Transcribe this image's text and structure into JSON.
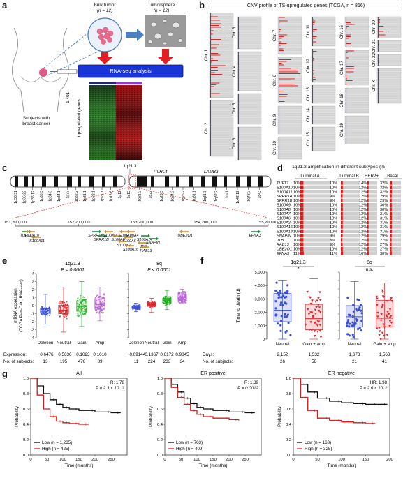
{
  "panel_labels": {
    "a": "a",
    "b": "b",
    "c": "c",
    "d": "d",
    "e": "e",
    "f": "f",
    "g": "g"
  },
  "panel_a": {
    "bulk_title": "Bulk tumor",
    "bulk_n": "(n = 12)",
    "sphere_title": "Tumorsphere",
    "sphere_n": "(n = 12)",
    "rnaseq": "RNA-seq analysis",
    "heat_l1": "1,401",
    "heat_l2": "upregulated genes",
    "subjects_l1": "Subjects with",
    "subjects_l2": "breast cancer"
  },
  "panel_b": {
    "title": "CNV profile of TS-upregulated genes (TCGA, n = 816)",
    "chromosomes": [
      "Chr. 1",
      "Chr. 2",
      "Chr. 3",
      "Chr. 4",
      "Chr. 5",
      "Chr. 6",
      "Chr. 7",
      "Chr. 8",
      "Chr. 9",
      "Chr. 10",
      "Chr. 11",
      "Chr. 12",
      "Chr. 13",
      "Chr. 14",
      "Chr. 15",
      "Chr. 16",
      "Chr. 17",
      "Chr. 18",
      "Chr. 19",
      "Chr. 20",
      "Chr. 21",
      "Chr. 22",
      "Chr. X"
    ]
  },
  "panel_c": {
    "band_top": "1q21.3",
    "gene_top1": "PVRL4",
    "gene_top2": "LAMB3",
    "bands_p": [
      "1p36.31",
      "1p36.22",
      "1p36.12",
      "1p35.3",
      "1p34.3",
      "1p34.1",
      "1p33",
      "1p32.2",
      "1p31.1",
      "1p22.1",
      "1p21.1",
      "1p13.3",
      "1p12"
    ],
    "bands_q": [
      "1q12",
      "1q21.2",
      "1q22",
      "1q23.3",
      "1q24.2",
      "1q25.2",
      "1q31.1",
      "1q31.3",
      "1q32.2",
      "1q41",
      "1q42.12",
      "1q42.2",
      "1q43"
    ],
    "positions": [
      "151,200,000",
      "152,200,000",
      "153,200,000",
      "154,200,000",
      "155,200,000"
    ],
    "genes": [
      "TUFT1",
      "S100A10",
      "S100A11",
      "SPRR1A",
      "SPRR1B",
      "S100A9",
      "S100A8",
      "S100A7",
      "S100A4",
      "S100A6",
      "S100A14",
      "S100A2",
      "S100A16",
      "JTB",
      "RAB13",
      "SNAPIN",
      "UBE2Q1",
      "EFNA3"
    ]
  },
  "panel_d": {
    "title": "1q21.3 amplification in different subtypes (%)",
    "headers": [
      "Luminal A",
      "Luminal B",
      "HER2+",
      "Basal"
    ],
    "rows": [
      {
        "gene": "TUFT1",
        "la": "10%",
        "lb": "10%",
        "her2": "14%",
        "basal": "32%"
      },
      {
        "gene": "S100A10",
        "la": "10%",
        "lb": "10%",
        "her2": "12%",
        "basal": "32%"
      },
      {
        "gene": "S100A11",
        "la": "10%",
        "lb": "10%",
        "her2": "12%",
        "basal": "32%"
      },
      {
        "gene": "SPRR1A",
        "la": "10%",
        "lb": "9%",
        "her2": "12%",
        "basal": "29%"
      },
      {
        "gene": "SPRR1B",
        "la": "10%",
        "lb": "9%",
        "her2": "12%",
        "basal": "29%"
      },
      {
        "gene": "S100A9",
        "la": "10%",
        "lb": "10%",
        "her2": "12%",
        "basal": "30%"
      },
      {
        "gene": "S100A8",
        "la": "10%",
        "lb": "10%",
        "her2": "12%",
        "basal": "30%"
      },
      {
        "gene": "S100A7",
        "la": "10%",
        "lb": "10%",
        "her2": "12%",
        "basal": "31%"
      },
      {
        "gene": "S100A6",
        "la": "10%",
        "lb": "10%",
        "her2": "12%",
        "basal": "31%"
      },
      {
        "gene": "S100A2",
        "la": "10%",
        "lb": "10%",
        "her2": "12%",
        "basal": "31%"
      },
      {
        "gene": "S100A16",
        "la": "10%",
        "lb": "10%",
        "her2": "12%",
        "basal": "31%"
      },
      {
        "gene": "S100A14",
        "la": "10%",
        "lb": "10%",
        "her2": "12%",
        "basal": "31%"
      },
      {
        "gene": "SNAPIN",
        "la": "10%",
        "lb": "9%",
        "her2": "12%",
        "basal": "29%"
      },
      {
        "gene": "JTB",
        "la": "10%",
        "lb": "8%",
        "her2": "12%",
        "basal": "27%"
      },
      {
        "gene": "RAB13",
        "la": "10%",
        "lb": "9%",
        "her2": "12%",
        "basal": "27%"
      },
      {
        "gene": "UBE2Q1",
        "la": "10%",
        "lb": "10%",
        "her2": "12%",
        "basal": "27%"
      },
      {
        "gene": "EFNA3",
        "la": "11%",
        "lb": "11%",
        "her2": "16%",
        "basal": "30%"
      }
    ]
  },
  "chart_data": [
    {
      "type": "box",
      "panel": "e-left",
      "title": "1q21.3",
      "pvalue": "P < 0.0001",
      "ylabel": "mRNA expression (TCGA Pan-Can, RNA-seq)",
      "ylim": [
        -4,
        4
      ],
      "yticks": [
        "-4",
        "-3",
        "-2",
        "-1",
        "0",
        "1",
        "2",
        "3",
        "4"
      ],
      "categories": [
        "Deletion",
        "Neutral",
        "Gain",
        "Amp"
      ],
      "colors": [
        "#3b4fd6",
        "#e0262a",
        "#1aad1a",
        "#b45cd6"
      ],
      "box": [
        {
          "q1": -0.95,
          "median": -0.6476,
          "q3": -0.4,
          "min": -2.3,
          "max": 1.4
        },
        {
          "q1": -1.0,
          "median": -0.5636,
          "q3": 0.05,
          "min": -3.3,
          "max": 2.3
        },
        {
          "q1": -0.7,
          "median": -0.1023,
          "q3": 0.6,
          "min": -2.6,
          "max": 3.0
        },
        {
          "q1": -0.45,
          "median": 0.101,
          "q3": 0.85,
          "min": -1.9,
          "max": 2.3
        }
      ],
      "footer_label_expression": "Expression:",
      "footer_label_subjects": "No. of subjects:",
      "expression": [
        "−0.6476",
        "−0.5636",
        "−0.1023",
        "0.1010"
      ],
      "subjects": [
        "13",
        "195",
        "476",
        "89"
      ]
    },
    {
      "type": "box",
      "panel": "e-right",
      "title": "8q",
      "pvalue": "P < 0.0001",
      "ylim": [
        -4,
        4
      ],
      "yticks": [
        "-4",
        "-3",
        "-2",
        "-1",
        "0",
        "1",
        "2",
        "3",
        "4"
      ],
      "categories": [
        "Deletion",
        "Neutral",
        "Gain",
        "Amp"
      ],
      "colors": [
        "#3b4fd6",
        "#e0262a",
        "#1aad1a",
        "#b45cd6"
      ],
      "box": [
        {
          "q1": -0.35,
          "median": -0.09144,
          "q3": -0.05,
          "min": -0.75,
          "max": 0.3
        },
        {
          "q1": -0.05,
          "median": 0.1367,
          "q3": 0.35,
          "min": -0.85,
          "max": 0.9
        },
        {
          "q1": 0.35,
          "median": 0.6172,
          "q3": 0.9,
          "min": -0.5,
          "max": 1.9
        },
        {
          "q1": 0.6,
          "median": 0.9845,
          "q3": 1.45,
          "min": 0.35,
          "max": 2.05
        }
      ],
      "expression": [
        "−0.09144",
        "0.1367",
        "0.6172",
        "0.9845"
      ],
      "subjects": [
        "11",
        "224",
        "233",
        "34"
      ]
    },
    {
      "type": "box",
      "panel": "f-left",
      "title": "1q21.3",
      "sig": "*",
      "ylabel": "Time to death (d)",
      "ylim": [
        0,
        5000
      ],
      "yticks": [
        "0",
        "1,000",
        "2,000",
        "3,000",
        "4,000",
        "5,000"
      ],
      "categories": [
        "Neutral",
        "Gain + amp"
      ],
      "colors": [
        "#3b4fd6",
        "#e0262a"
      ],
      "box": [
        {
          "q1": 1300,
          "median": 2152,
          "q3": 3400,
          "min": 0,
          "max": 4400
        },
        {
          "q1": 700,
          "median": 1532,
          "q3": 2600,
          "min": 0,
          "max": 4500
        }
      ],
      "footer_label_days": "Days:",
      "footer_label_subjects": "No. of subjects:",
      "days": [
        "2,152",
        "1,532"
      ],
      "subjects": [
        "26",
        "56"
      ]
    },
    {
      "type": "box",
      "panel": "f-right",
      "title": "8q",
      "sig": "n.s.",
      "ylim": [
        0,
        5000
      ],
      "categories": [
        "Neutral",
        "Gain + amp"
      ],
      "colors": [
        "#3b4fd6",
        "#e0262a"
      ],
      "box": [
        {
          "q1": 900,
          "median": 1673,
          "q3": 2500,
          "min": 0,
          "max": 4300
        },
        {
          "q1": 900,
          "median": 1563,
          "q3": 2900,
          "min": 0,
          "max": 4200
        }
      ],
      "days": [
        "1,673",
        "1,563"
      ],
      "subjects": [
        "21",
        "41"
      ]
    },
    {
      "type": "line",
      "panel": "g-all",
      "title": "All",
      "hr": "HR: 1.78",
      "p": "P = 2.3 × 10⁻¹⁷",
      "xlabel": "Time (months)",
      "ylabel": "Probability",
      "xlim": [
        0,
        300
      ],
      "ylim": [
        0,
        1
      ],
      "xticks": [
        "0",
        "50",
        "100",
        "150",
        "200",
        "250"
      ],
      "yticks": [
        "0.0",
        "0.2",
        "0.4",
        "0.6",
        "0.8",
        "1.0"
      ],
      "series": [
        {
          "name": "Low (n = 1,235)",
          "color": "#111111",
          "x": [
            0,
            20,
            40,
            60,
            80,
            100,
            120,
            150,
            200,
            250,
            280
          ],
          "y": [
            1.0,
            0.9,
            0.8,
            0.72,
            0.66,
            0.62,
            0.6,
            0.58,
            0.56,
            0.55,
            0.55
          ]
        },
        {
          "name": "High (n = 425)",
          "color": "#e01818",
          "x": [
            0,
            20,
            40,
            60,
            80,
            100,
            120,
            150,
            180
          ],
          "y": [
            1.0,
            0.78,
            0.6,
            0.5,
            0.44,
            0.42,
            0.41,
            0.4,
            0.4
          ]
        }
      ]
    },
    {
      "type": "line",
      "panel": "g-erpos",
      "title": "ER positive",
      "hr": "HR: 1.39",
      "p": "P = 0.0012",
      "xlabel": "Time (months)",
      "ylabel": "Probability",
      "xlim": [
        0,
        300
      ],
      "ylim": [
        0,
        1
      ],
      "xticks": [
        "0",
        "50",
        "100",
        "150",
        "200",
        "250"
      ],
      "yticks": [
        "0.0",
        "0.2",
        "0.4",
        "0.6",
        "0.8",
        "1.0"
      ],
      "series": [
        {
          "name": "Low (n = 763)",
          "color": "#111111",
          "x": [
            0,
            20,
            40,
            60,
            80,
            100,
            120,
            150,
            200,
            250,
            280
          ],
          "y": [
            1.0,
            0.92,
            0.82,
            0.74,
            0.67,
            0.62,
            0.6,
            0.58,
            0.56,
            0.55,
            0.55
          ]
        },
        {
          "name": "High (n = 409)",
          "color": "#e01818",
          "x": [
            0,
            20,
            40,
            60,
            80,
            100,
            120,
            150,
            200,
            230
          ],
          "y": [
            1.0,
            0.88,
            0.75,
            0.66,
            0.58,
            0.53,
            0.5,
            0.48,
            0.46,
            0.45
          ]
        }
      ]
    },
    {
      "type": "line",
      "panel": "g-erneg",
      "title": "ER negative",
      "hr": "HR: 1.98",
      "p": "P = 2.6 × 10⁻⁵",
      "xlabel": "Time (months)",
      "ylabel": "Probability",
      "xlim": [
        0,
        200
      ],
      "ylim": [
        0,
        1
      ],
      "xticks": [
        "0",
        "50",
        "100",
        "150",
        "200"
      ],
      "yticks": [
        "0.0",
        "0.2",
        "0.4",
        "0.6",
        "0.8",
        "1.0"
      ],
      "series": [
        {
          "name": "Low (n = 163)",
          "color": "#111111",
          "x": [
            0,
            15,
            30,
            50,
            75,
            100,
            125,
            150,
            175,
            195
          ],
          "y": [
            1.0,
            0.92,
            0.82,
            0.74,
            0.7,
            0.68,
            0.67,
            0.66,
            0.66,
            0.66
          ]
        },
        {
          "name": "High (n = 325)",
          "color": "#e01818",
          "x": [
            0,
            15,
            30,
            50,
            75,
            100,
            125,
            150,
            170
          ],
          "y": [
            1.0,
            0.75,
            0.58,
            0.48,
            0.45,
            0.43,
            0.42,
            0.41,
            0.41
          ]
        }
      ]
    }
  ]
}
